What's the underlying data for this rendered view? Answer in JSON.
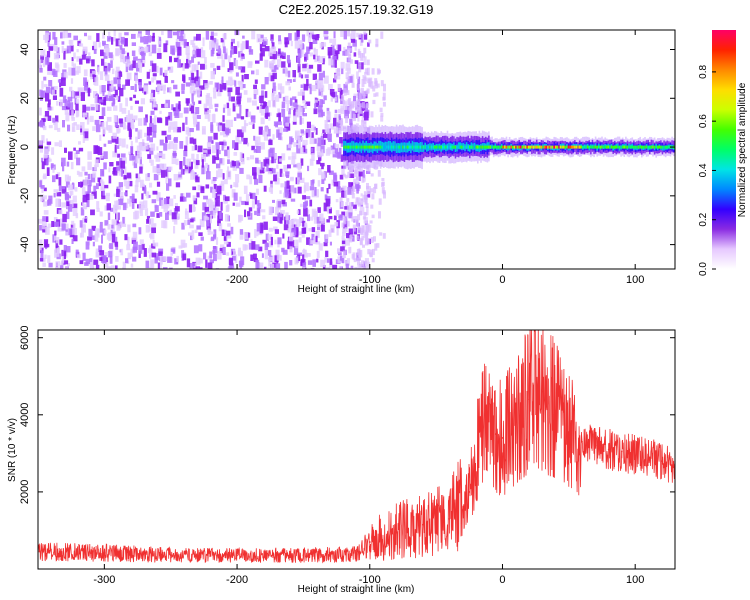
{
  "chart_data": [
    {
      "type": "heatmap",
      "title": "C2E2.2025.157.19.32.G19",
      "xlabel": "Height of straight line (km)",
      "ylabel": "Frequency (Hz)",
      "xlim": [
        -350,
        130
      ],
      "ylim": [
        -50,
        48
      ],
      "x_ticks": [
        -300,
        -200,
        -100,
        0,
        100
      ],
      "y_ticks": [
        -40,
        -20,
        0,
        20,
        40
      ],
      "colorbar": {
        "label": "Normalized spectral amplitude",
        "range": [
          0,
          0.97
        ],
        "ticks": [
          "0.0",
          "0.2",
          "0.4",
          "0.6",
          "0.8"
        ],
        "colors": [
          "#ffffff",
          "#e6c8ff",
          "#8a2be2",
          "#3300ff",
          "#0088ff",
          "#00e5e5",
          "#00ff66",
          "#44ff00",
          "#ccff00",
          "#ffdd00",
          "#ff8800",
          "#ff2200",
          "#ff0066"
        ]
      },
      "features": {
        "noise_region_x": [
          -350,
          -100
        ],
        "signal_x": [
          -120,
          130
        ],
        "signal_center_hz": 0,
        "signal_peak_x": [
          0,
          60
        ]
      }
    },
    {
      "type": "line",
      "xlabel": "Height of straight line (km)",
      "ylabel": "SNR (10 * v/v)",
      "xlim": [
        -350,
        130
      ],
      "ylim": [
        0,
        6200
      ],
      "x_ticks": [
        -300,
        -200,
        -100,
        0,
        100
      ],
      "y_ticks": [
        2000,
        4000,
        6000
      ],
      "color": "#f03030",
      "x": [
        -350,
        -300,
        -250,
        -200,
        -150,
        -110,
        -100,
        -80,
        -60,
        -40,
        -25,
        -15,
        -5,
        0,
        10,
        20,
        30,
        40,
        50,
        60,
        70,
        80,
        90,
        100,
        110,
        120,
        127,
        130
      ],
      "values": [
        450,
        420,
        360,
        350,
        360,
        380,
        700,
        1000,
        1150,
        1300,
        2000,
        3800,
        3500,
        3400,
        3800,
        4400,
        4600,
        4100,
        3500,
        3300,
        3200,
        3100,
        3050,
        2950,
        2900,
        2800,
        2700,
        2400
      ]
    }
  ]
}
